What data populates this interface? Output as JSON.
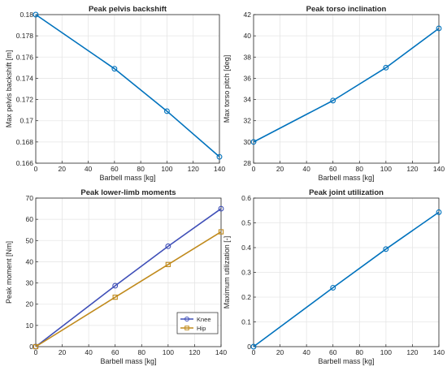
{
  "chart_data": [
    {
      "type": "line",
      "title": "Peak pelvis backshift",
      "xlabel": "Barbell mass [kg]",
      "ylabel": "Max pelvis backshift [m]",
      "xlim": [
        0,
        140
      ],
      "ylim": [
        0.166,
        0.18
      ],
      "xticks": [
        0,
        20,
        40,
        60,
        80,
        100,
        120,
        140
      ],
      "yticks": [
        0.166,
        0.168,
        0.17,
        0.172,
        0.174,
        0.176,
        0.178,
        0.18
      ],
      "ytick_labels": [
        "0.166",
        "0.168",
        "0.17",
        "0.172",
        "0.174",
        "0.176",
        "0.178",
        "0.18"
      ],
      "grid": true,
      "series": [
        {
          "x": [
            0,
            60,
            100,
            140
          ],
          "y": [
            0.18,
            0.1749,
            0.1709,
            0.1666
          ],
          "color": "#0072BD",
          "marker": "circle"
        }
      ]
    },
    {
      "type": "line",
      "title": "Peak torso inclination",
      "xlabel": "Barbell mass [kg]",
      "ylabel": "Max torso pitch [deg]",
      "xlim": [
        0,
        140
      ],
      "ylim": [
        28,
        42
      ],
      "xticks": [
        0,
        20,
        40,
        60,
        80,
        100,
        120,
        140
      ],
      "yticks": [
        28,
        30,
        32,
        34,
        36,
        38,
        40,
        42
      ],
      "ytick_labels": [
        "28",
        "30",
        "32",
        "34",
        "36",
        "38",
        "40",
        "42"
      ],
      "grid": true,
      "series": [
        {
          "x": [
            0,
            60,
            100,
            140
          ],
          "y": [
            30.0,
            33.9,
            37.0,
            40.7
          ],
          "color": "#0072BD",
          "marker": "circle"
        }
      ]
    },
    {
      "type": "line",
      "title": "Peak lower-limb moments",
      "xlabel": "Barbell mass [kg]",
      "ylabel": "Peak moment [Nm]",
      "xlim": [
        0,
        140
      ],
      "ylim": [
        0,
        70
      ],
      "xticks": [
        0,
        20,
        40,
        60,
        80,
        100,
        120,
        140
      ],
      "yticks": [
        0,
        10,
        20,
        30,
        40,
        50,
        60,
        70
      ],
      "ytick_labels": [
        "0",
        "10",
        "20",
        "30",
        "40",
        "50",
        "60",
        "70"
      ],
      "grid": true,
      "legend": "bottom-right",
      "series": [
        {
          "name": "Knee",
          "x": [
            0,
            60,
            100,
            140
          ],
          "y": [
            0,
            28.7,
            47.3,
            65.0
          ],
          "color": "#3F4FB8",
          "marker": "circle"
        },
        {
          "name": "Hip",
          "x": [
            0,
            60,
            100,
            140
          ],
          "y": [
            0,
            23.3,
            38.7,
            54.1
          ],
          "color": "#C08A1C",
          "marker": "square"
        }
      ]
    },
    {
      "type": "line",
      "title": "Peak joint utilization",
      "xlabel": "Barbell mass [kg]",
      "ylabel": "Maximum utilization [-]",
      "xlim": [
        0,
        140
      ],
      "ylim": [
        0,
        0.6
      ],
      "xticks": [
        0,
        20,
        40,
        60,
        80,
        100,
        120,
        140
      ],
      "yticks": [
        0,
        0.1,
        0.2,
        0.3,
        0.4,
        0.5,
        0.6
      ],
      "ytick_labels": [
        "0",
        "0.1",
        "0.2",
        "0.3",
        "0.4",
        "0.5",
        "0.6"
      ],
      "grid": true,
      "series": [
        {
          "x": [
            0,
            60,
            100,
            140
          ],
          "y": [
            0,
            0.238,
            0.394,
            0.543
          ],
          "color": "#0072BD",
          "marker": "circle"
        }
      ]
    }
  ]
}
